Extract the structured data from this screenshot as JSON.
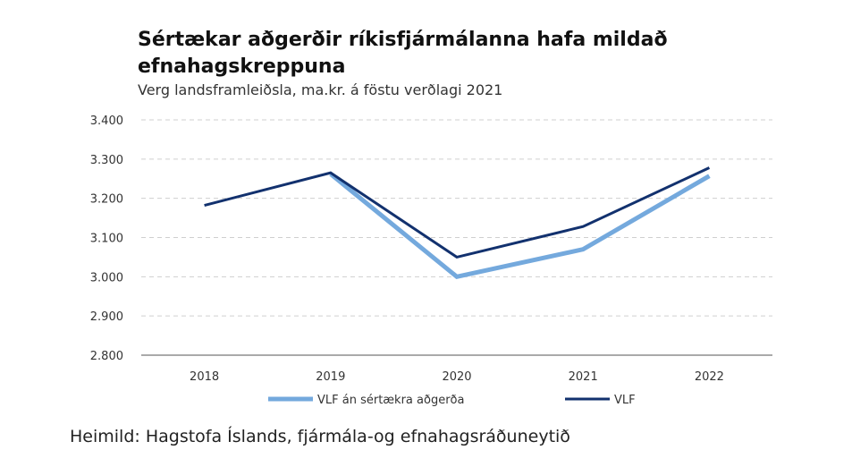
{
  "title": "Sértækar aðgerðir ríkisfjármálanna hafa mildað efnahagskreppuna",
  "subtitle": "Verg landsframleiðsla, ma.kr. á föstu verðlagi 2021",
  "source": "Heimild: Hagstofa Íslands, fjármála-og efnahagsráðuneytið",
  "chart_data": {
    "type": "line",
    "title": "Sértækar aðgerðir ríkisfjármálanna hafa mildað efnahagskreppuna",
    "subtitle": "Verg landsframleiðsla, ma.kr. á föstu verðlagi 2021",
    "xlabel": "",
    "ylabel": "",
    "x": [
      "2018",
      "2019",
      "2020",
      "2021",
      "2022"
    ],
    "ylim": [
      2800,
      3400
    ],
    "yticks": [
      2800,
      2900,
      3000,
      3100,
      3200,
      3300,
      3400
    ],
    "ytick_labels": [
      "2.800",
      "2.900",
      "3.000",
      "3.100",
      "3.200",
      "3.300",
      "3.400"
    ],
    "grid": "horizontal dashed",
    "legend_position": "bottom",
    "series": [
      {
        "name": "VLF án sértækra aðgerða",
        "color": "#74a9dd",
        "values": [
          null,
          3262,
          3000,
          3070,
          3257
        ]
      },
      {
        "name": "VLF",
        "color": "#12316e",
        "values": [
          3182,
          3265,
          3050,
          3128,
          3278
        ]
      }
    ]
  }
}
